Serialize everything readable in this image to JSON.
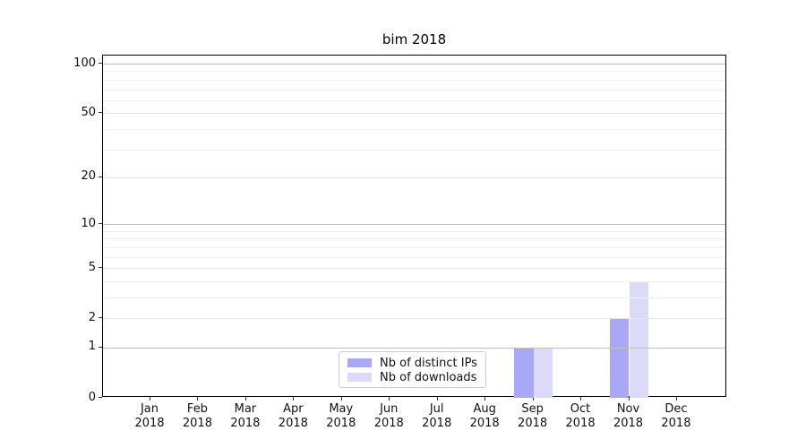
{
  "window": {
    "background": "#ffffff"
  },
  "chart_data": {
    "type": "bar",
    "title": "bim 2018",
    "categories": [
      {
        "month": "Jan",
        "year": "2018"
      },
      {
        "month": "Feb",
        "year": "2018"
      },
      {
        "month": "Mar",
        "year": "2018"
      },
      {
        "month": "Apr",
        "year": "2018"
      },
      {
        "month": "May",
        "year": "2018"
      },
      {
        "month": "Jun",
        "year": "2018"
      },
      {
        "month": "Jul",
        "year": "2018"
      },
      {
        "month": "Aug",
        "year": "2018"
      },
      {
        "month": "Sep",
        "year": "2018"
      },
      {
        "month": "Oct",
        "year": "2018"
      },
      {
        "month": "Nov",
        "year": "2018"
      },
      {
        "month": "Dec",
        "year": "2018"
      }
    ],
    "series": [
      {
        "name": "Nb of distinct IPs",
        "color": "#a8a8f6",
        "values": [
          0,
          0,
          0,
          0,
          0,
          0,
          0,
          0,
          1,
          0,
          2,
          0
        ]
      },
      {
        "name": "Nb of downloads",
        "color": "#dbdbf9",
        "values": [
          0,
          0,
          0,
          0,
          0,
          0,
          0,
          0,
          1,
          0,
          4,
          0
        ]
      }
    ],
    "y_axis": {
      "scale": "log10(1+x)",
      "tick_labels": [
        0,
        1,
        2,
        5,
        10,
        20,
        50,
        100
      ],
      "ylim": [
        0,
        112
      ],
      "grid": "on",
      "major_gridlines": [
        1,
        10,
        100
      ],
      "minor_gridlines_labeled": [
        2,
        5,
        20,
        50
      ],
      "minor_gridlines_faint": [
        3,
        4,
        6,
        7,
        8,
        9,
        30,
        40,
        60,
        70,
        80,
        90
      ]
    },
    "x_axis": {
      "tick_count": 12,
      "label_lines": 2
    },
    "legend": {
      "position": "lower center",
      "border_color": "#cccccc"
    }
  },
  "colors": {
    "grid_major": "#bdbdbd",
    "grid_minor_labeled": "#e6e6e6",
    "grid_minor_faint": "#f0f0f0",
    "spine": "#000000",
    "tick": "#333333",
    "text": "#111111"
  }
}
